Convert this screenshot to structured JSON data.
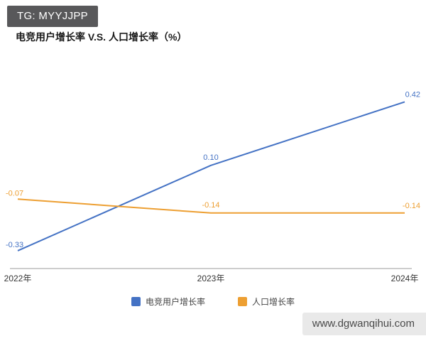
{
  "watermarks": {
    "top": "TG: MYYJJPP",
    "bottom": "www.dgwanqihui.com"
  },
  "colors": {
    "tg_badge_bg": "#58585a",
    "tg_badge_text": "#ffffff",
    "site_badge_bg": "#e9e9e9",
    "site_badge_text": "#4a4a4a",
    "axis": "#9b9b9b"
  },
  "chart_data": {
    "type": "line",
    "title": "电竞用户增长率 V.S. 人口增长率（%）",
    "categories": [
      "2022年",
      "2023年",
      "2024年"
    ],
    "series": [
      {
        "id": "esports-user-growth",
        "name": "电竞用户增长率",
        "color": "#4472c4",
        "values": [
          -0.33,
          0.1,
          0.42
        ]
      },
      {
        "id": "population-growth",
        "name": "人口增长率",
        "color": "#ed9f32",
        "values": [
          -0.07,
          -0.14,
          -0.14
        ]
      }
    ],
    "xlabel": "",
    "ylabel": "",
    "ylim": [
      -0.42,
      0.69
    ],
    "grid": false,
    "legend_position": "bottom",
    "data_labels": true
  }
}
